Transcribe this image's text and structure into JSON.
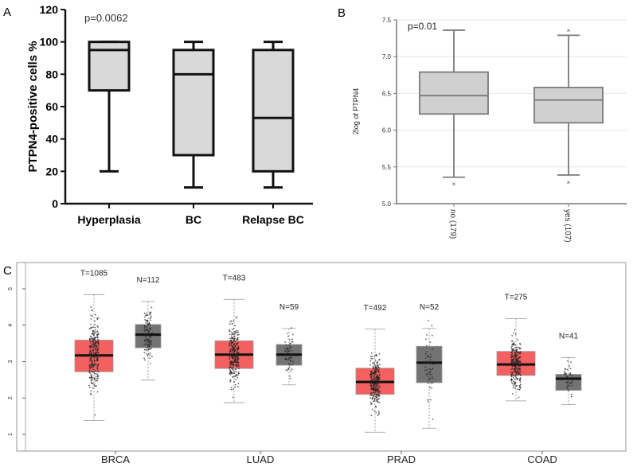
{
  "chart_data": [
    {
      "panel": "A",
      "type": "box",
      "ylabel": "PTPN4-positive cells %",
      "ylim": [
        0,
        120
      ],
      "yticks": [
        0,
        20,
        40,
        60,
        80,
        100,
        120
      ],
      "annotation": "p=0.0062",
      "categories": [
        "Hyperplasia",
        "BC",
        "Relapse BC"
      ],
      "boxes": [
        {
          "min": 20,
          "q1": 70,
          "median": 95,
          "q3": 100,
          "max": 100
        },
        {
          "min": 10,
          "q1": 30,
          "median": 80,
          "q3": 95,
          "max": 100
        },
        {
          "min": 10,
          "q1": 20,
          "median": 53,
          "q3": 95,
          "max": 100
        }
      ],
      "colors": {
        "fill": "#d9d9d9",
        "stroke": "#111111"
      }
    },
    {
      "panel": "B",
      "type": "box",
      "ylabel": "2log of PTPN4",
      "ylim": [
        5.0,
        7.5
      ],
      "yticks": [
        "5.0",
        "5.5",
        "6.0",
        "6.5",
        "7.0",
        "7.5"
      ],
      "grid": true,
      "annotation": "p=0.01",
      "categories": [
        "no (179)",
        "yes (107)"
      ],
      "boxes": [
        {
          "min": 5.36,
          "q1": 6.22,
          "median": 6.47,
          "q3": 6.79,
          "max": 7.36,
          "outliers": [
            5.27
          ]
        },
        {
          "min": 5.39,
          "q1": 6.1,
          "median": 6.41,
          "q3": 6.58,
          "max": 7.29,
          "outliers": [
            7.36,
            5.29
          ]
        }
      ],
      "colors": {
        "fill": "#d0d0d0",
        "stroke": "#7a7a7a",
        "grid": "#e6e6e6"
      }
    },
    {
      "panel": "C",
      "type": "box",
      "ylim": [
        0.7,
        5.5
      ],
      "yticks": [
        "1",
        "2",
        "3",
        "4",
        "5"
      ],
      "categories": [
        "BRCA",
        "LUAD",
        "PRAD",
        "COAD"
      ],
      "groups": [
        {
          "tumor": {
            "label": "T=1085",
            "n": 1085,
            "min": 1.38,
            "q1": 2.72,
            "median": 3.17,
            "q3": 3.59,
            "max": 4.84
          },
          "normal": {
            "label": "N=112",
            "n": 112,
            "min": 2.49,
            "q1": 3.38,
            "median": 3.74,
            "q3": 4.02,
            "max": 4.65
          }
        },
        {
          "tumor": {
            "label": "T=483",
            "n": 483,
            "min": 1.87,
            "q1": 2.81,
            "median": 3.19,
            "q3": 3.57,
            "max": 4.71
          },
          "normal": {
            "label": "N=59",
            "n": 59,
            "min": 2.36,
            "q1": 2.9,
            "median": 3.19,
            "q3": 3.47,
            "max": 3.91
          }
        },
        {
          "tumor": {
            "label": "T=492",
            "n": 492,
            "min": 1.06,
            "q1": 2.1,
            "median": 2.44,
            "q3": 2.82,
            "max": 3.89
          },
          "normal": {
            "label": "N=52",
            "n": 52,
            "min": 1.17,
            "q1": 2.42,
            "median": 2.97,
            "q3": 3.42,
            "max": 3.91
          }
        },
        {
          "tumor": {
            "label": "T=275",
            "n": 275,
            "min": 1.92,
            "q1": 2.62,
            "median": 2.92,
            "q3": 3.28,
            "max": 4.18
          },
          "normal": {
            "label": "N=41",
            "n": 41,
            "min": 1.82,
            "q1": 2.21,
            "median": 2.53,
            "q3": 2.65,
            "max": 3.11
          }
        }
      ],
      "colors": {
        "tumor": "#f26060",
        "normal": "#737373",
        "frame": "#a8a8a8"
      }
    }
  ],
  "panel_labels": [
    "A",
    "B",
    "C"
  ]
}
